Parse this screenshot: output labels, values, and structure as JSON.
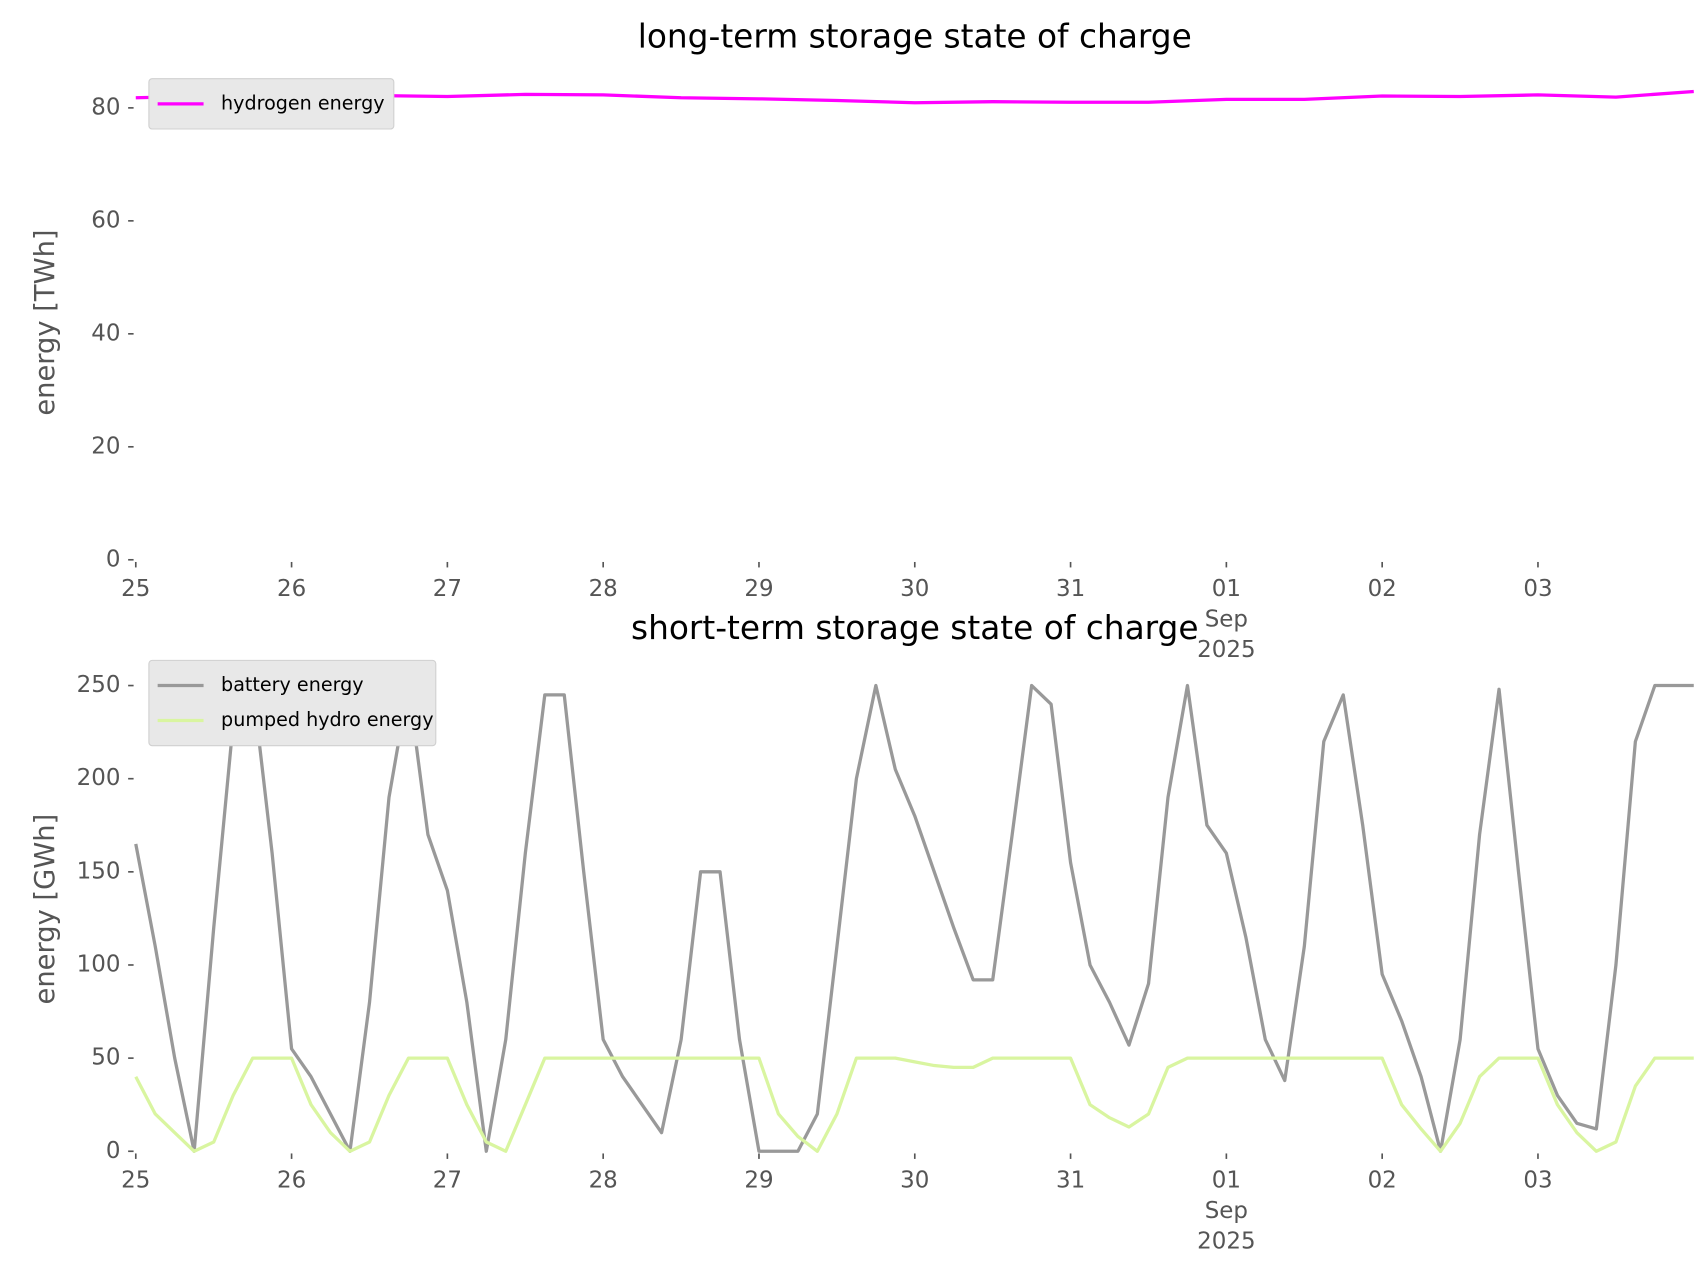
{
  "chart_data": [
    {
      "type": "line",
      "title": "long-term storage state of charge",
      "ylabel": "energy [TWh]",
      "xlim": [
        "2025-08-25",
        "2025-09-04"
      ],
      "xticks": [
        {
          "value": "2025-08-25",
          "label": "25"
        },
        {
          "value": "2025-08-26",
          "label": "26"
        },
        {
          "value": "2025-08-27",
          "label": "27"
        },
        {
          "value": "2025-08-28",
          "label": "28"
        },
        {
          "value": "2025-08-29",
          "label": "29"
        },
        {
          "value": "2025-08-30",
          "label": "30"
        },
        {
          "value": "2025-08-31",
          "label": "31"
        },
        {
          "value": "2025-09-01",
          "label": "01\nSep\n2025"
        },
        {
          "value": "2025-09-02",
          "label": "02"
        },
        {
          "value": "2025-09-03",
          "label": "03"
        }
      ],
      "ylim": [
        0,
        84
      ],
      "yticks": [
        0,
        20,
        40,
        60,
        80
      ],
      "legend": "upper left",
      "series": [
        {
          "name": "hydrogen energy",
          "color": "#ff00ff",
          "values": [
            81.8,
            82.1,
            82.2,
            82.2,
            82.0,
            82.4,
            82.3,
            81.8,
            81.6,
            81.3,
            80.9,
            81.1,
            81.0,
            81.0,
            81.5,
            81.5,
            82.1,
            82.0,
            82.3,
            81.9,
            82.9
          ]
        }
      ]
    },
    {
      "type": "line",
      "title": "short-term storage state of charge",
      "ylabel": "energy [GWh]",
      "xlim": [
        "2025-08-25",
        "2025-09-04"
      ],
      "xticks": [
        {
          "value": "2025-08-25",
          "label": "25"
        },
        {
          "value": "2025-08-26",
          "label": "26"
        },
        {
          "value": "2025-08-27",
          "label": "27"
        },
        {
          "value": "2025-08-28",
          "label": "28"
        },
        {
          "value": "2025-08-29",
          "label": "29"
        },
        {
          "value": "2025-08-30",
          "label": "30"
        },
        {
          "value": "2025-08-31",
          "label": "31"
        },
        {
          "value": "2025-09-01",
          "label": "01\nSep\n2025"
        },
        {
          "value": "2025-09-02",
          "label": "02"
        },
        {
          "value": "2025-09-03",
          "label": "03"
        }
      ],
      "ylim": [
        0,
        260
      ],
      "yticks": [
        0,
        50,
        100,
        150,
        200,
        250
      ],
      "legend": "upper left",
      "series": [
        {
          "name": "battery energy",
          "color": "#999999",
          "values": [
            165,
            110,
            50,
            0,
            120,
            230,
            250,
            160,
            55,
            40,
            20,
            0,
            80,
            190,
            250,
            170,
            140,
            80,
            0,
            60,
            160,
            245,
            245,
            150,
            60,
            40,
            25,
            10,
            60,
            150,
            150,
            60,
            0,
            0,
            0,
            20,
            110,
            200,
            250,
            205,
            180,
            150,
            120,
            92,
            92,
            170,
            250,
            240,
            155,
            100,
            80,
            57,
            90,
            190,
            250,
            175,
            160,
            115,
            60,
            38,
            110,
            220,
            245,
            175,
            95,
            70,
            40,
            0,
            60,
            170,
            248,
            150,
            55,
            30,
            15,
            12,
            100,
            220,
            250,
            250,
            250
          ]
        },
        {
          "name": "pumped hydro energy",
          "color": "#d9f5a0",
          "values": [
            40,
            20,
            10,
            0,
            5,
            30,
            50,
            50,
            50,
            25,
            10,
            0,
            5,
            30,
            50,
            50,
            50,
            25,
            5,
            0,
            25,
            50,
            50,
            50,
            50,
            50,
            50,
            50,
            50,
            50,
            50,
            50,
            50,
            20,
            8,
            0,
            20,
            50,
            50,
            50,
            48,
            46,
            45,
            45,
            50,
            50,
            50,
            50,
            50,
            25,
            18,
            13,
            20,
            45,
            50,
            50,
            50,
            50,
            50,
            50,
            50,
            50,
            50,
            50,
            50,
            25,
            12,
            0,
            15,
            40,
            50,
            50,
            50,
            25,
            10,
            0,
            5,
            35,
            50,
            50,
            50
          ]
        }
      ]
    }
  ]
}
